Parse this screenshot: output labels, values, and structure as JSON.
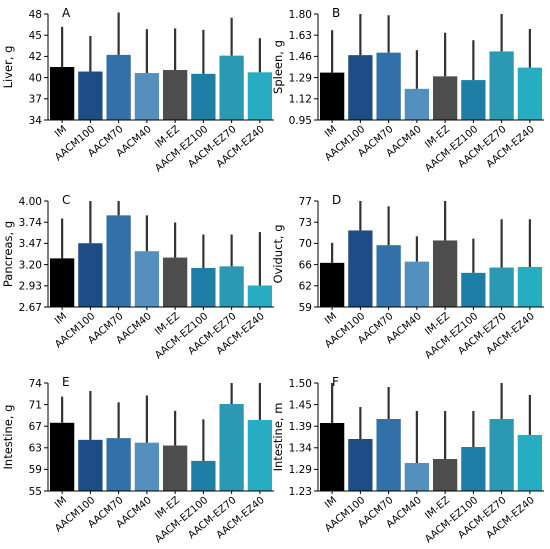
{
  "figure": {
    "colors": [
      "#000000",
      "#1d4c87",
      "#3470a8",
      "#5490be",
      "#4d4d4d",
      "#1f7ea6",
      "#2a99b1",
      "#27adc3"
    ]
  },
  "chart_data": [
    {
      "panel": "A",
      "type": "bar",
      "ylabel": "Liver, g",
      "ylim": [
        34,
        48
      ],
      "yticks": [
        "34",
        "37",
        "40",
        "42",
        "45",
        "48"
      ],
      "categories": [
        "IM",
        "AACM100",
        "AACM70",
        "AACM40",
        "IM-EZ",
        "AACM-EZ100",
        "AACM-EZ70",
        "AACM-EZ40"
      ],
      "values": [
        41.0,
        40.4,
        42.6,
        40.2,
        40.6,
        40.1,
        42.5,
        40.3
      ],
      "error_upper": [
        46.3,
        45.1,
        48.2,
        46.0,
        46.1,
        45.9,
        47.5,
        44.8
      ]
    },
    {
      "panel": "B",
      "type": "bar",
      "ylabel": "Spleen, g",
      "ylim": [
        0.95,
        1.8
      ],
      "yticks": [
        "0.95",
        "1.12",
        "1.29",
        "1.46",
        "1.63",
        "1.80"
      ],
      "categories": [
        "IM",
        "AACM100",
        "AACM70",
        "AACM40",
        "IM-EZ",
        "AACM-EZ100",
        "AACM-EZ70",
        "AACM-EZ40"
      ],
      "values": [
        1.33,
        1.47,
        1.49,
        1.2,
        1.3,
        1.27,
        1.5,
        1.37
      ],
      "error_upper": [
        1.67,
        1.8,
        1.79,
        1.51,
        1.65,
        1.59,
        1.8,
        1.68
      ]
    },
    {
      "panel": "C",
      "type": "bar",
      "ylabel": "Pancreas, g",
      "ylim": [
        2.67,
        4.0
      ],
      "yticks": [
        "2.67",
        "2.93",
        "3.20",
        "3.47",
        "3.74",
        "4.00"
      ],
      "categories": [
        "IM",
        "AACM100",
        "AACM70",
        "AACM40",
        "IM-EZ",
        "AACM-EZ100",
        "AACM-EZ70",
        "AACM-EZ40"
      ],
      "values": [
        3.28,
        3.47,
        3.82,
        3.37,
        3.29,
        3.16,
        3.18,
        2.94
      ],
      "error_upper": [
        3.78,
        4.0,
        4.0,
        3.82,
        3.73,
        3.58,
        3.58,
        3.61
      ]
    },
    {
      "panel": "D",
      "type": "bar",
      "ylabel": "Oviduct, g",
      "ylim": [
        59,
        77
      ],
      "yticks": [
        "59",
        "62",
        "66",
        "70",
        "73",
        "77"
      ],
      "categories": [
        "IM",
        "AACM100",
        "AACM70",
        "AACM40",
        "IM-EZ",
        "AACM-EZ100",
        "AACM-EZ70",
        "AACM-EZ40"
      ],
      "values": [
        66.5,
        72.0,
        69.5,
        66.7,
        70.3,
        64.8,
        65.7,
        65.8
      ],
      "error_upper": [
        69.9,
        77.0,
        76.1,
        71.0,
        77.0,
        70.6,
        73.9,
        73.9
      ]
    },
    {
      "panel": "E",
      "type": "bar",
      "ylabel": "Intestine, g",
      "ylim": [
        55,
        74
      ],
      "yticks": [
        "55",
        "59",
        "63",
        "67",
        "71",
        "74"
      ],
      "categories": [
        "IM",
        "AACM100",
        "AACM70",
        "AACM40",
        "IM-EZ",
        "AACM-EZ100",
        "AACM-EZ70",
        "AACM-EZ40"
      ],
      "values": [
        67.0,
        64.0,
        64.3,
        63.5,
        63.0,
        60.3,
        70.3,
        67.5
      ],
      "error_upper": [
        71.6,
        72.6,
        70.6,
        71.8,
        69.1,
        67.6,
        74.0,
        74.0
      ]
    },
    {
      "panel": "F",
      "type": "bar",
      "ylabel": "Intestine, m",
      "ylim": [
        1.23,
        1.5
      ],
      "yticks": [
        "1.23",
        "1.29",
        "1.34",
        "1.39",
        "1.45",
        "1.50"
      ],
      "categories": [
        "IM",
        "AACM100",
        "AACM70",
        "AACM40",
        "IM-EZ",
        "AACM-EZ100",
        "AACM-EZ70",
        "AACM-EZ40"
      ],
      "values": [
        1.4,
        1.36,
        1.41,
        1.3,
        1.31,
        1.34,
        1.41,
        1.37
      ],
      "error_upper": [
        1.5,
        1.44,
        1.49,
        1.43,
        1.43,
        1.43,
        1.5,
        1.47
      ]
    }
  ]
}
